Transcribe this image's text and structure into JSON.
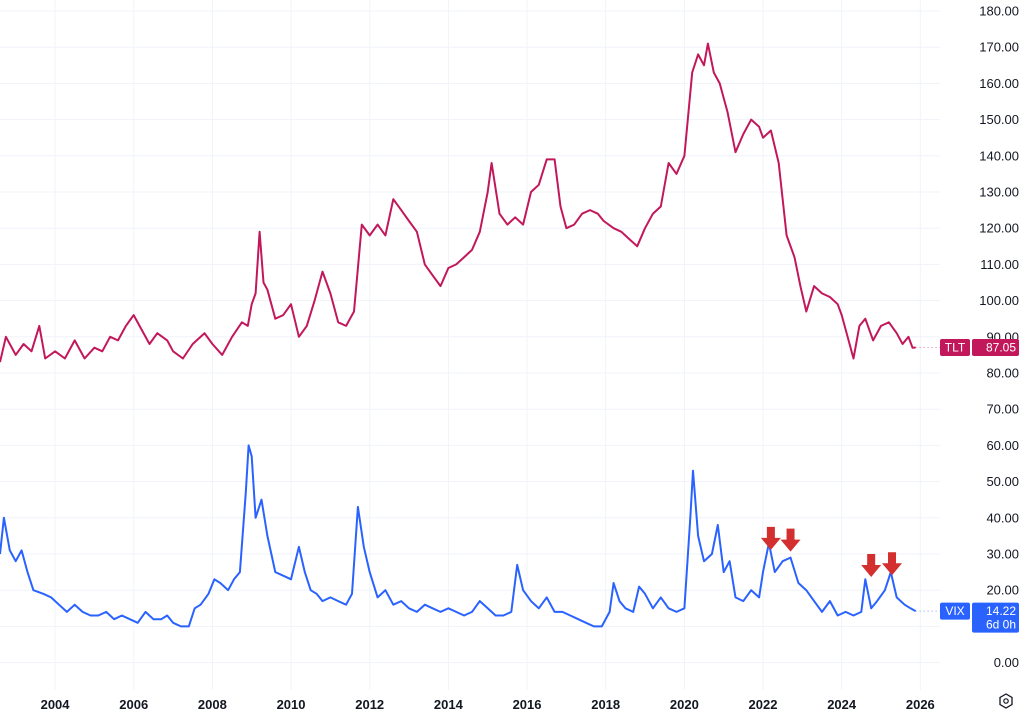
{
  "chart_data": {
    "type": "line",
    "y_axis": {
      "range": [
        -5,
        180
      ],
      "ticks": [
        "0.00",
        "10.00",
        "20.00",
        "30.00",
        "40.00",
        "50.00",
        "60.00",
        "70.00",
        "80.00",
        "90.00",
        "100.00",
        "110.00",
        "120.00",
        "130.00",
        "140.00",
        "150.00",
        "160.00",
        "170.00",
        "180.00"
      ],
      "tick_values": [
        0,
        10,
        20,
        30,
        40,
        50,
        60,
        70,
        80,
        90,
        100,
        110,
        120,
        130,
        140,
        150,
        160,
        170,
        180
      ],
      "position": "right"
    },
    "x_axis": {
      "range": [
        2002.6,
        2026.5
      ],
      "ticks": [
        "2004",
        "2006",
        "2008",
        "2010",
        "2012",
        "2014",
        "2016",
        "2018",
        "2020",
        "2022",
        "2024",
        "2026"
      ],
      "tick_values": [
        2004,
        2006,
        2008,
        2010,
        2012,
        2014,
        2016,
        2018,
        2020,
        2022,
        2024,
        2026
      ]
    },
    "grid": true,
    "series": [
      {
        "name": "TLT",
        "color": "#c2185b",
        "last_value": "87.05",
        "points": [
          [
            2002.6,
            83
          ],
          [
            2002.75,
            90
          ],
          [
            2003.0,
            85
          ],
          [
            2003.2,
            88
          ],
          [
            2003.4,
            86
          ],
          [
            2003.6,
            93
          ],
          [
            2003.75,
            84
          ],
          [
            2004.0,
            86
          ],
          [
            2004.25,
            84
          ],
          [
            2004.5,
            89
          ],
          [
            2004.75,
            84
          ],
          [
            2005.0,
            87
          ],
          [
            2005.2,
            86
          ],
          [
            2005.4,
            90
          ],
          [
            2005.6,
            89
          ],
          [
            2005.8,
            93
          ],
          [
            2006.0,
            96
          ],
          [
            2006.2,
            92
          ],
          [
            2006.4,
            88
          ],
          [
            2006.6,
            91
          ],
          [
            2006.85,
            89
          ],
          [
            2007.0,
            86
          ],
          [
            2007.25,
            84
          ],
          [
            2007.5,
            88
          ],
          [
            2007.8,
            91
          ],
          [
            2008.0,
            88
          ],
          [
            2008.25,
            85
          ],
          [
            2008.5,
            90
          ],
          [
            2008.75,
            94
          ],
          [
            2008.9,
            93
          ],
          [
            2009.0,
            99
          ],
          [
            2009.1,
            102
          ],
          [
            2009.2,
            119
          ],
          [
            2009.3,
            105
          ],
          [
            2009.4,
            103
          ],
          [
            2009.6,
            95
          ],
          [
            2009.8,
            96
          ],
          [
            2010.0,
            99
          ],
          [
            2010.2,
            90
          ],
          [
            2010.4,
            93
          ],
          [
            2010.6,
            100
          ],
          [
            2010.8,
            108
          ],
          [
            2011.0,
            102
          ],
          [
            2011.2,
            94
          ],
          [
            2011.4,
            93
          ],
          [
            2011.6,
            97
          ],
          [
            2011.8,
            121
          ],
          [
            2012.0,
            118
          ],
          [
            2012.2,
            121
          ],
          [
            2012.4,
            118
          ],
          [
            2012.6,
            128
          ],
          [
            2012.8,
            125
          ],
          [
            2013.0,
            122
          ],
          [
            2013.2,
            119
          ],
          [
            2013.4,
            110
          ],
          [
            2013.6,
            107
          ],
          [
            2013.8,
            104
          ],
          [
            2014.0,
            109
          ],
          [
            2014.2,
            110
          ],
          [
            2014.4,
            112
          ],
          [
            2014.6,
            114
          ],
          [
            2014.8,
            119
          ],
          [
            2015.0,
            130
          ],
          [
            2015.1,
            138
          ],
          [
            2015.3,
            124
          ],
          [
            2015.5,
            121
          ],
          [
            2015.7,
            123
          ],
          [
            2015.9,
            121
          ],
          [
            2016.1,
            130
          ],
          [
            2016.3,
            132
          ],
          [
            2016.5,
            139
          ],
          [
            2016.7,
            139
          ],
          [
            2016.85,
            126
          ],
          [
            2017.0,
            120
          ],
          [
            2017.2,
            121
          ],
          [
            2017.4,
            124
          ],
          [
            2017.6,
            125
          ],
          [
            2017.8,
            124
          ],
          [
            2017.95,
            122
          ],
          [
            2018.2,
            120
          ],
          [
            2018.4,
            119
          ],
          [
            2018.6,
            117
          ],
          [
            2018.8,
            115
          ],
          [
            2019.0,
            120
          ],
          [
            2019.2,
            124
          ],
          [
            2019.4,
            126
          ],
          [
            2019.6,
            138
          ],
          [
            2019.8,
            135
          ],
          [
            2020.0,
            140
          ],
          [
            2020.2,
            163
          ],
          [
            2020.35,
            168
          ],
          [
            2020.5,
            165
          ],
          [
            2020.6,
            171
          ],
          [
            2020.75,
            163
          ],
          [
            2020.9,
            160
          ],
          [
            2021.1,
            152
          ],
          [
            2021.3,
            141
          ],
          [
            2021.5,
            146
          ],
          [
            2021.7,
            150
          ],
          [
            2021.9,
            148
          ],
          [
            2022.0,
            145
          ],
          [
            2022.2,
            147
          ],
          [
            2022.4,
            138
          ],
          [
            2022.6,
            118
          ],
          [
            2022.8,
            112
          ],
          [
            2022.95,
            104
          ],
          [
            2023.1,
            97
          ],
          [
            2023.3,
            104
          ],
          [
            2023.5,
            102
          ],
          [
            2023.7,
            101
          ],
          [
            2023.9,
            99
          ],
          [
            2024.0,
            96
          ],
          [
            2024.15,
            90
          ],
          [
            2024.3,
            84
          ],
          [
            2024.45,
            93
          ],
          [
            2024.6,
            95
          ],
          [
            2024.8,
            89
          ],
          [
            2025.0,
            93
          ],
          [
            2025.2,
            94
          ],
          [
            2025.4,
            91
          ],
          [
            2025.55,
            88
          ],
          [
            2025.7,
            90
          ],
          [
            2025.8,
            87
          ],
          [
            2025.88,
            87.05
          ]
        ]
      },
      {
        "name": "VIX",
        "color": "#2962ff",
        "last_value": "14.22",
        "points": [
          [
            2002.6,
            30
          ],
          [
            2002.7,
            40
          ],
          [
            2002.85,
            31
          ],
          [
            2003.0,
            28
          ],
          [
            2003.15,
            31
          ],
          [
            2003.3,
            25
          ],
          [
            2003.45,
            20
          ],
          [
            2003.7,
            19
          ],
          [
            2003.9,
            18
          ],
          [
            2004.1,
            16
          ],
          [
            2004.3,
            14
          ],
          [
            2004.5,
            16
          ],
          [
            2004.7,
            14
          ],
          [
            2004.9,
            13
          ],
          [
            2005.1,
            13
          ],
          [
            2005.3,
            14
          ],
          [
            2005.5,
            12
          ],
          [
            2005.7,
            13
          ],
          [
            2005.9,
            12
          ],
          [
            2006.1,
            11
          ],
          [
            2006.3,
            14
          ],
          [
            2006.5,
            12
          ],
          [
            2006.7,
            12
          ],
          [
            2006.85,
            13
          ],
          [
            2007.0,
            11
          ],
          [
            2007.2,
            10
          ],
          [
            2007.4,
            10
          ],
          [
            2007.55,
            15
          ],
          [
            2007.7,
            16
          ],
          [
            2007.9,
            19
          ],
          [
            2008.05,
            23
          ],
          [
            2008.2,
            22
          ],
          [
            2008.4,
            20
          ],
          [
            2008.55,
            23
          ],
          [
            2008.7,
            25
          ],
          [
            2008.85,
            47
          ],
          [
            2008.92,
            60
          ],
          [
            2009.0,
            57
          ],
          [
            2009.1,
            40
          ],
          [
            2009.25,
            45
          ],
          [
            2009.4,
            35
          ],
          [
            2009.6,
            25
          ],
          [
            2009.8,
            24
          ],
          [
            2010.0,
            23
          ],
          [
            2010.2,
            32
          ],
          [
            2010.35,
            25
          ],
          [
            2010.5,
            20
          ],
          [
            2010.65,
            19
          ],
          [
            2010.8,
            17
          ],
          [
            2011.0,
            18
          ],
          [
            2011.2,
            17
          ],
          [
            2011.4,
            16
          ],
          [
            2011.55,
            19
          ],
          [
            2011.7,
            43
          ],
          [
            2011.85,
            32
          ],
          [
            2012.0,
            25
          ],
          [
            2012.2,
            18
          ],
          [
            2012.4,
            20
          ],
          [
            2012.6,
            16
          ],
          [
            2012.8,
            17
          ],
          [
            2013.0,
            15
          ],
          [
            2013.2,
            14
          ],
          [
            2013.4,
            16
          ],
          [
            2013.6,
            15
          ],
          [
            2013.8,
            14
          ],
          [
            2014.0,
            15
          ],
          [
            2014.2,
            14
          ],
          [
            2014.4,
            13
          ],
          [
            2014.6,
            14
          ],
          [
            2014.8,
            17
          ],
          [
            2015.0,
            15
          ],
          [
            2015.2,
            13
          ],
          [
            2015.4,
            13
          ],
          [
            2015.6,
            14
          ],
          [
            2015.75,
            27
          ],
          [
            2015.9,
            20
          ],
          [
            2016.1,
            17
          ],
          [
            2016.3,
            15
          ],
          [
            2016.5,
            18
          ],
          [
            2016.7,
            14
          ],
          [
            2016.9,
            14
          ],
          [
            2017.1,
            13
          ],
          [
            2017.3,
            12
          ],
          [
            2017.5,
            11
          ],
          [
            2017.7,
            10
          ],
          [
            2017.9,
            10
          ],
          [
            2018.1,
            14
          ],
          [
            2018.2,
            22
          ],
          [
            2018.35,
            17
          ],
          [
            2018.5,
            15
          ],
          [
            2018.7,
            14
          ],
          [
            2018.85,
            21
          ],
          [
            2019.0,
            19
          ],
          [
            2019.2,
            15
          ],
          [
            2019.4,
            18
          ],
          [
            2019.6,
            15
          ],
          [
            2019.8,
            14
          ],
          [
            2020.0,
            15
          ],
          [
            2020.15,
            40
          ],
          [
            2020.22,
            53
          ],
          [
            2020.35,
            35
          ],
          [
            2020.5,
            28
          ],
          [
            2020.7,
            30
          ],
          [
            2020.85,
            38
          ],
          [
            2021.0,
            25
          ],
          [
            2021.15,
            28
          ],
          [
            2021.3,
            18
          ],
          [
            2021.5,
            17
          ],
          [
            2021.7,
            20
          ],
          [
            2021.9,
            18
          ],
          [
            2022.0,
            25
          ],
          [
            2022.15,
            33
          ],
          [
            2022.3,
            25
          ],
          [
            2022.5,
            28
          ],
          [
            2022.7,
            29
          ],
          [
            2022.9,
            22
          ],
          [
            2023.1,
            20
          ],
          [
            2023.3,
            17
          ],
          [
            2023.5,
            14
          ],
          [
            2023.7,
            17
          ],
          [
            2023.9,
            13
          ],
          [
            2024.1,
            14
          ],
          [
            2024.3,
            13
          ],
          [
            2024.5,
            14
          ],
          [
            2024.6,
            23
          ],
          [
            2024.75,
            15
          ],
          [
            2024.9,
            17
          ],
          [
            2025.1,
            20
          ],
          [
            2025.25,
            25
          ],
          [
            2025.4,
            18
          ],
          [
            2025.6,
            16
          ],
          [
            2025.75,
            15
          ],
          [
            2025.88,
            14.22
          ]
        ]
      }
    ],
    "annotations": [
      {
        "type": "arrow-down",
        "x": 2022.2,
        "y": 37.5,
        "color": "#d32f2f"
      },
      {
        "type": "arrow-down",
        "x": 2022.7,
        "y": 37.0,
        "color": "#d32f2f"
      },
      {
        "type": "arrow-down",
        "x": 2024.75,
        "y": 30.0,
        "color": "#d32f2f"
      },
      {
        "type": "arrow-down",
        "x": 2025.28,
        "y": 30.5,
        "color": "#d32f2f"
      }
    ],
    "price_tags": [
      {
        "series": "TLT",
        "label": "TLT",
        "value": "87.05",
        "color": "#c2185b"
      },
      {
        "series": "VIX",
        "label": "VIX",
        "value": "14.22",
        "sub": "6d 0h",
        "color": "#2962ff"
      }
    ]
  },
  "ui": {
    "settings_icon": "settings-hexagon-icon"
  }
}
